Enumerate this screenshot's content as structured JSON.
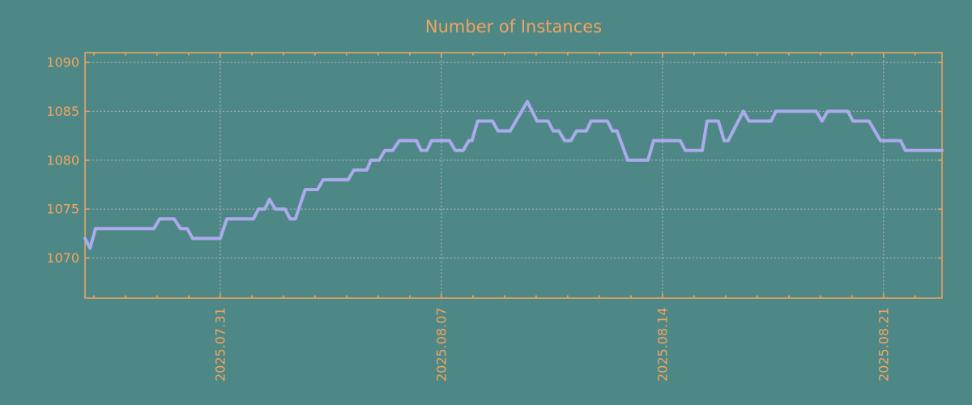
{
  "title": "Number of Instances",
  "colors": {
    "background": "#4e8886",
    "axis": "#f2a45f",
    "line": "#abaaec",
    "grid": "#c6c6c6"
  },
  "chart_data": {
    "type": "line",
    "title": "Number of Instances",
    "xlabel": "",
    "ylabel": "",
    "grid": "dashed",
    "legend": "none",
    "x_axis": {
      "unit": "date",
      "tick_labels": [
        "2025.07.31",
        "2025.08.07",
        "2025.08.14",
        "2025.08.21"
      ],
      "major_tick_day_offsets": [
        0,
        7,
        14,
        21
      ],
      "minor_tick_interval_days": 1,
      "range_days": [
        -4.28,
        22.85
      ],
      "label_rotation_deg": 90
    },
    "y_axis": {
      "tick_labels": [
        "1070",
        "1075",
        "1080",
        "1085",
        "1090"
      ],
      "tick_values": [
        1070,
        1075,
        1080,
        1085,
        1090
      ],
      "range": [
        1065.9,
        1091.0
      ]
    },
    "series": [
      {
        "name": "instances",
        "points": [
          [
            -4.28,
            1072
          ],
          [
            -4.12,
            1071
          ],
          [
            -3.95,
            1073
          ],
          [
            -2.1,
            1073
          ],
          [
            -1.92,
            1074
          ],
          [
            -1.46,
            1074
          ],
          [
            -1.26,
            1073
          ],
          [
            -1.05,
            1073
          ],
          [
            -0.87,
            1072
          ],
          [
            0.0,
            1072
          ],
          [
            0.21,
            1074
          ],
          [
            1.05,
            1074
          ],
          [
            1.21,
            1075
          ],
          [
            1.41,
            1075
          ],
          [
            1.56,
            1076
          ],
          [
            1.74,
            1075
          ],
          [
            2.05,
            1075
          ],
          [
            2.21,
            1074
          ],
          [
            2.38,
            1074
          ],
          [
            2.69,
            1077
          ],
          [
            3.08,
            1077
          ],
          [
            3.26,
            1078
          ],
          [
            4.05,
            1078
          ],
          [
            4.23,
            1079
          ],
          [
            4.64,
            1079
          ],
          [
            4.77,
            1080
          ],
          [
            5.03,
            1080
          ],
          [
            5.21,
            1081
          ],
          [
            5.46,
            1081
          ],
          [
            5.67,
            1082
          ],
          [
            6.21,
            1082
          ],
          [
            6.36,
            1081
          ],
          [
            6.54,
            1081
          ],
          [
            6.69,
            1082
          ],
          [
            7.26,
            1082
          ],
          [
            7.44,
            1081
          ],
          [
            7.69,
            1081
          ],
          [
            7.87,
            1082
          ],
          [
            7.97,
            1082
          ],
          [
            8.15,
            1084
          ],
          [
            8.62,
            1084
          ],
          [
            8.79,
            1083
          ],
          [
            9.18,
            1083
          ],
          [
            9.72,
            1086
          ],
          [
            10.03,
            1084
          ],
          [
            10.38,
            1084
          ],
          [
            10.54,
            1083
          ],
          [
            10.72,
            1083
          ],
          [
            10.9,
            1082
          ],
          [
            11.1,
            1082
          ],
          [
            11.28,
            1083
          ],
          [
            11.59,
            1083
          ],
          [
            11.74,
            1084
          ],
          [
            12.26,
            1084
          ],
          [
            12.41,
            1083
          ],
          [
            12.56,
            1083
          ],
          [
            12.9,
            1080
          ],
          [
            13.54,
            1080
          ],
          [
            13.72,
            1082
          ],
          [
            14.56,
            1082
          ],
          [
            14.72,
            1081
          ],
          [
            15.26,
            1081
          ],
          [
            15.41,
            1084
          ],
          [
            15.77,
            1084
          ],
          [
            15.95,
            1082
          ],
          [
            16.08,
            1082
          ],
          [
            16.56,
            1085
          ],
          [
            16.74,
            1084
          ],
          [
            17.44,
            1084
          ],
          [
            17.59,
            1085
          ],
          [
            18.87,
            1085
          ],
          [
            19.05,
            1084
          ],
          [
            19.23,
            1085
          ],
          [
            19.87,
            1085
          ],
          [
            20.03,
            1084
          ],
          [
            20.54,
            1084
          ],
          [
            20.9,
            1082
          ],
          [
            21.54,
            1082
          ],
          [
            21.69,
            1081
          ],
          [
            22.85,
            1081
          ]
        ]
      }
    ]
  }
}
